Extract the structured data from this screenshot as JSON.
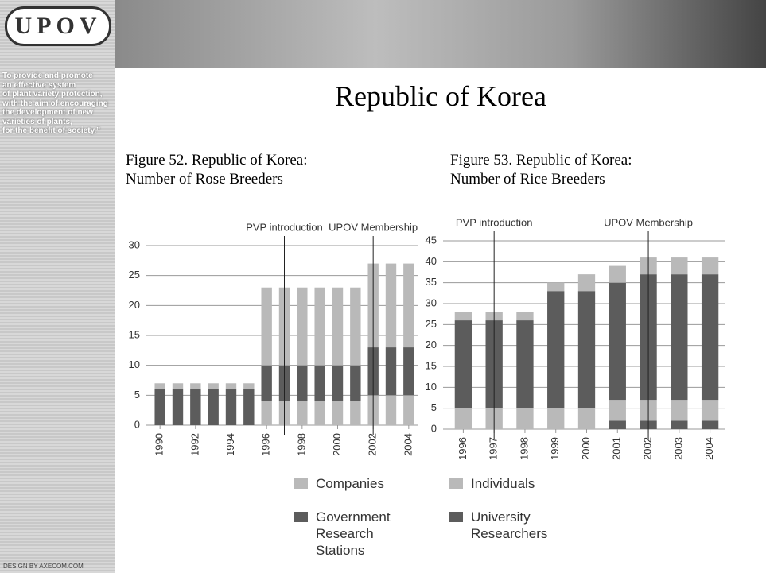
{
  "logo": "UPOV",
  "sidebar": {
    "motto": [
      "To provide and promote",
      "an effective system",
      "of plant variety protection,",
      "with the aim of encouraging",
      "the development of new",
      "varieties of plants,",
      "for the benefit of society.”"
    ],
    "credit": "DESIGN BY AXECOM.COM"
  },
  "title": "Republic of Korea",
  "chart_data": [
    {
      "type": "bar",
      "stacked": true,
      "title": "Figure 52. Republic of Korea:",
      "subtitle": "Number of Rose Breeders",
      "x": [
        1990,
        1991,
        1992,
        1993,
        1994,
        1995,
        1996,
        1997,
        1998,
        1999,
        2000,
        2001,
        2002,
        2003,
        2004
      ],
      "xlim": [
        1989.5,
        2004.5
      ],
      "xticks": [
        1990,
        1992,
        1994,
        1996,
        1998,
        2000,
        2002,
        2004
      ],
      "ylim": [
        0,
        30
      ],
      "yticks": [
        0,
        5,
        10,
        15,
        20,
        25,
        30
      ],
      "grid": true,
      "series": [
        {
          "color": "#b9b9b9",
          "values": [
            0,
            0,
            0,
            0,
            0,
            0,
            4,
            4,
            4,
            4,
            4,
            4,
            5,
            5,
            5
          ]
        },
        {
          "name": "Government Research Stations",
          "color": "#5c5c5c",
          "values": [
            6,
            6,
            6,
            6,
            6,
            6,
            6,
            6,
            6,
            6,
            6,
            6,
            8,
            8,
            8
          ]
        },
        {
          "name": "Companies",
          "color": "#b9b9b9",
          "values": [
            1,
            1,
            1,
            1,
            1,
            1,
            13,
            13,
            13,
            13,
            13,
            13,
            14,
            14,
            14
          ]
        }
      ],
      "annotations": [
        {
          "label": "PVP introduction",
          "x": 1997
        },
        {
          "label": "UPOV Membership",
          "x": 2002
        }
      ]
    },
    {
      "type": "bar",
      "stacked": true,
      "title": "Figure 53. Republic of Korea:",
      "subtitle": "Number of Rice Breeders",
      "x": [
        1996,
        1997,
        1998,
        1999,
        2000,
        2001,
        2002,
        2003,
        2004
      ],
      "xlim": [
        1995.5,
        2004.5
      ],
      "xticks": [
        1996,
        1997,
        1998,
        1999,
        2000,
        2001,
        2002,
        2003,
        2004
      ],
      "ylim": [
        0,
        45
      ],
      "yticks": [
        0,
        5,
        10,
        15,
        20,
        25,
        30,
        35,
        40,
        45
      ],
      "grid": true,
      "series": [
        {
          "color": "#5c5c5c",
          "values": [
            0,
            0,
            0,
            0,
            0,
            2,
            2,
            2,
            2
          ]
        },
        {
          "color": "#b9b9b9",
          "values": [
            5,
            5,
            5,
            5,
            5,
            5,
            5,
            5,
            5
          ]
        },
        {
          "name": "University Researchers",
          "color": "#5c5c5c",
          "values": [
            21,
            21,
            21,
            28,
            28,
            28,
            30,
            30,
            30
          ]
        },
        {
          "name": "Individuals",
          "color": "#b9b9b9",
          "values": [
            2,
            2,
            2,
            2,
            4,
            4,
            4,
            4,
            4
          ]
        }
      ],
      "annotations": [
        {
          "label": "PVP introduction",
          "x": 1997
        },
        {
          "label": "UPOV Membership",
          "x": 2002
        }
      ]
    }
  ]
}
